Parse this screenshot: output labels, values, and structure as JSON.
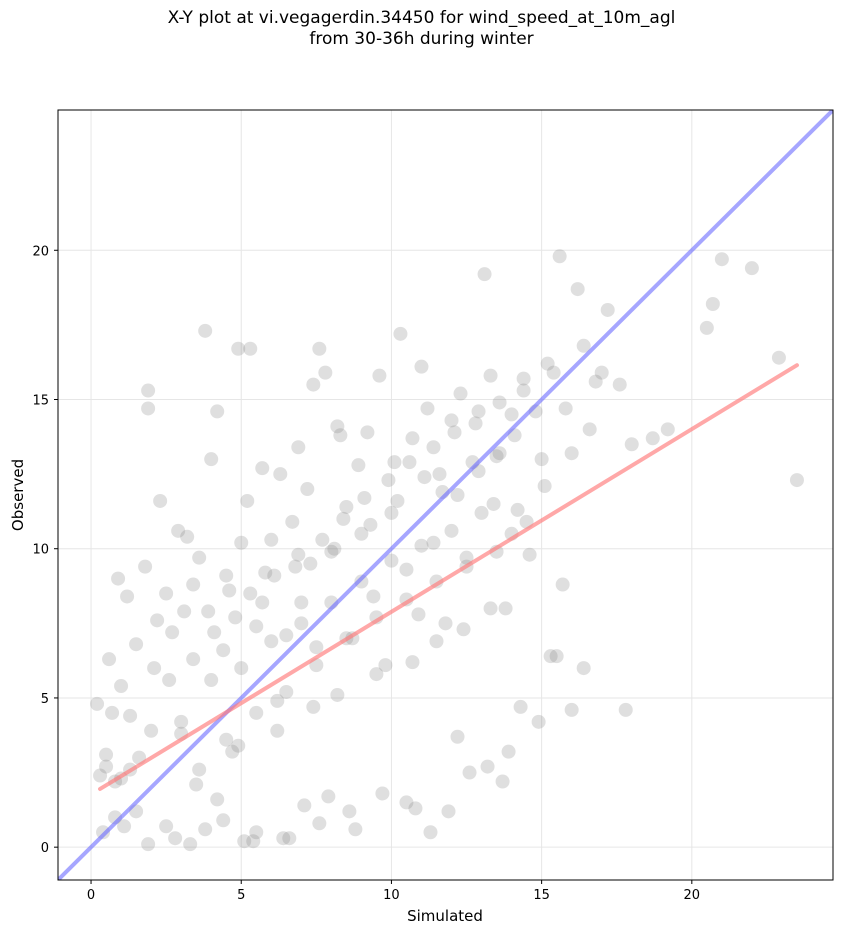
{
  "chart_data": {
    "type": "scatter",
    "title_lines": [
      "X-Y plot at vi.vegagerdin.34450 for wind_speed_at_10m_agl",
      "from 30-36h during winter"
    ],
    "xlabel": "Simulated",
    "ylabel": "Observed",
    "xlim": [
      -1.1,
      24.7
    ],
    "ylim": [
      -1.1,
      24.7
    ],
    "xticks": [
      0,
      5,
      10,
      15,
      20
    ],
    "yticks": [
      0,
      5,
      10,
      15,
      20
    ],
    "grid": true,
    "colors": {
      "points": "#808080",
      "identity_line": "#6b6bff",
      "fit_line": "#ff7a7a"
    },
    "identity_line": {
      "x": [
        -1.1,
        24.7
      ],
      "y": [
        -1.1,
        24.7
      ]
    },
    "fit_line": {
      "x": [
        0.3,
        23.5
      ],
      "y": [
        1.95,
        16.15
      ]
    },
    "points": {
      "x": [
        0.2,
        0.3,
        0.4,
        0.5,
        0.6,
        0.7,
        0.8,
        0.9,
        1.0,
        1.1,
        1.2,
        1.3,
        1.5,
        1.6,
        1.8,
        1.9,
        1.9,
        2.1,
        2.3,
        2.5,
        2.7,
        2.9,
        3.0,
        3.2,
        3.4,
        3.6,
        3.8,
        3.9,
        4.0,
        4.2,
        4.4,
        4.5,
        4.7,
        4.9,
        5.0,
        5.2,
        5.3,
        5.5,
        5.7,
        5.8,
        6.0,
        6.2,
        6.3,
        6.5,
        6.7,
        6.9,
        7.0,
        7.2,
        7.4,
        7.5,
        7.6,
        7.8,
        8.0,
        8.2,
        8.3,
        8.5,
        8.7,
        8.9,
        9.0,
        9.2,
        9.4,
        9.6,
        9.8,
        10.0,
        10.1,
        10.3,
        10.5,
        10.7,
        10.9,
        11.0,
        11.2,
        11.4,
        11.6,
        11.8,
        12.0,
        12.2,
        12.3,
        12.5,
        12.7,
        12.9,
        13.1,
        13.3,
        13.4,
        13.6,
        13.8,
        14.0,
        14.2,
        14.4,
        14.6,
        14.8,
        15.0,
        15.2,
        15.4,
        15.6,
        15.8,
        16.0,
        16.2,
        16.4,
        16.6,
        16.8,
        17.0,
        17.2,
        17.6,
        18.0,
        18.7,
        19.2,
        20.5,
        20.7,
        21.0,
        22.0,
        22.9,
        23.5,
        1.0,
        1.5,
        2.0,
        2.5,
        3.0,
        3.5,
        4.0,
        4.5,
        5.0,
        5.5,
        6.0,
        6.5,
        7.0,
        7.5,
        8.0,
        8.5,
        9.0,
        9.5,
        10.0,
        10.5,
        11.0,
        11.5,
        12.0,
        12.5,
        13.0,
        13.5,
        14.0,
        14.5,
        3.8,
        4.2,
        5.1,
        5.5,
        6.4,
        7.6,
        7.9,
        8.8,
        10.5,
        11.3,
        11.9,
        12.6,
        13.2,
        13.7,
        14.3,
        15.3,
        15.7,
        16.0,
        17.8,
        1.9,
        2.8,
        3.3,
        4.4,
        5.4,
        6.6,
        7.1,
        8.6,
        9.7,
        10.8,
        12.2,
        13.9,
        14.9,
        15.5,
        16.4,
        2.2,
        3.1,
        4.6,
        5.7,
        6.8,
        7.3,
        8.1,
        9.3,
        10.2,
        11.1,
        11.7,
        12.9,
        13.5,
        14.1,
        15.1,
        0.5,
        0.8,
        1.3,
        2.6,
        3.4,
        4.1,
        4.8,
        5.3,
        6.1,
        6.9,
        7.7,
        8.4,
        9.1,
        9.9,
        10.6,
        11.4,
        12.1,
        12.8,
        13.6,
        14.4,
        3.6,
        4.9,
        6.2,
        7.4,
        8.2,
        9.5,
        10.7,
        11.5,
        12.4,
        13.3
      ],
      "y": [
        4.8,
        2.4,
        0.5,
        2.7,
        6.3,
        4.5,
        1.0,
        9.0,
        5.4,
        0.7,
        8.4,
        2.6,
        6.8,
        3.0,
        9.4,
        15.3,
        14.7,
        6.0,
        11.6,
        8.5,
        7.2,
        10.6,
        3.8,
        10.4,
        8.8,
        9.7,
        17.3,
        7.9,
        13.0,
        14.6,
        6.6,
        9.1,
        3.2,
        16.7,
        10.2,
        11.6,
        16.7,
        7.4,
        12.7,
        9.2,
        10.3,
        4.9,
        12.5,
        7.1,
        10.9,
        13.4,
        8.2,
        12.0,
        15.5,
        6.7,
        16.7,
        15.9,
        9.9,
        14.1,
        13.8,
        11.4,
        7.0,
        12.8,
        10.5,
        13.9,
        8.4,
        15.8,
        6.1,
        11.2,
        12.9,
        17.2,
        9.3,
        13.7,
        7.8,
        16.1,
        14.7,
        10.2,
        12.5,
        7.5,
        14.3,
        11.8,
        15.2,
        9.7,
        12.9,
        14.6,
        19.2,
        15.8,
        11.5,
        13.2,
        8.0,
        14.5,
        11.3,
        15.7,
        9.8,
        14.6,
        13.0,
        16.2,
        15.9,
        19.8,
        14.7,
        13.2,
        18.7,
        16.8,
        14.0,
        15.6,
        15.9,
        18.0,
        15.5,
        13.5,
        13.7,
        14.0,
        17.4,
        18.2,
        19.7,
        19.4,
        16.4,
        12.3,
        2.3,
        1.2,
        3.9,
        0.7,
        4.2,
        2.1,
        5.6,
        3.6,
        6.0,
        4.5,
        6.9,
        5.2,
        7.5,
        6.1,
        8.2,
        7.0,
        8.9,
        7.7,
        9.6,
        8.3,
        10.1,
        8.9,
        10.6,
        9.4,
        11.2,
        9.9,
        10.5,
        10.9,
        0.6,
        1.6,
        0.2,
        0.5,
        0.3,
        0.8,
        1.7,
        0.6,
        1.5,
        0.5,
        1.2,
        2.5,
        2.7,
        2.2,
        4.7,
        6.4,
        8.8,
        4.6,
        4.6,
        0.1,
        0.3,
        0.1,
        0.9,
        0.2,
        0.3,
        1.4,
        1.2,
        1.8,
        1.3,
        3.7,
        3.2,
        4.2,
        6.4,
        6.0,
        7.6,
        7.9,
        8.6,
        8.2,
        9.4,
        9.5,
        10.0,
        10.8,
        11.6,
        12.4,
        11.9,
        12.6,
        13.1,
        13.8,
        12.1,
        3.1,
        2.2,
        4.4,
        5.6,
        6.3,
        7.2,
        7.7,
        8.5,
        9.1,
        9.8,
        10.3,
        11.0,
        11.7,
        12.3,
        12.9,
        13.4,
        13.9,
        14.2,
        14.9,
        15.3,
        2.6,
        3.4,
        3.9,
        4.7,
        5.1,
        5.8,
        6.2,
        6.9,
        7.3,
        8.0
      ]
    }
  }
}
